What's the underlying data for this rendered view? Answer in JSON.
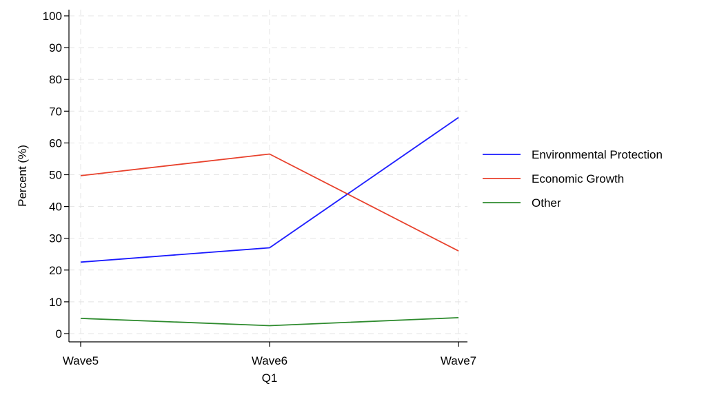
{
  "chart_data": {
    "type": "line",
    "categories": [
      "Wave5",
      "Wave6",
      "Wave7"
    ],
    "xlabel": "Q1",
    "ylabel": "Percent  (%)",
    "ylim": [
      0,
      100
    ],
    "yticks": [
      0,
      10,
      20,
      30,
      40,
      50,
      60,
      70,
      80,
      90,
      100
    ],
    "grid": true,
    "legend_position": "right",
    "series": [
      {
        "name": "Environmental Protection",
        "color": "#1a1aff",
        "values": [
          22.5,
          27,
          68
        ]
      },
      {
        "name": "Economic Growth",
        "color": "#e8412c",
        "values": [
          49.7,
          56.5,
          26
        ]
      },
      {
        "name": "Other",
        "color": "#2e8b2e",
        "values": [
          4.8,
          2.5,
          5
        ]
      }
    ]
  }
}
